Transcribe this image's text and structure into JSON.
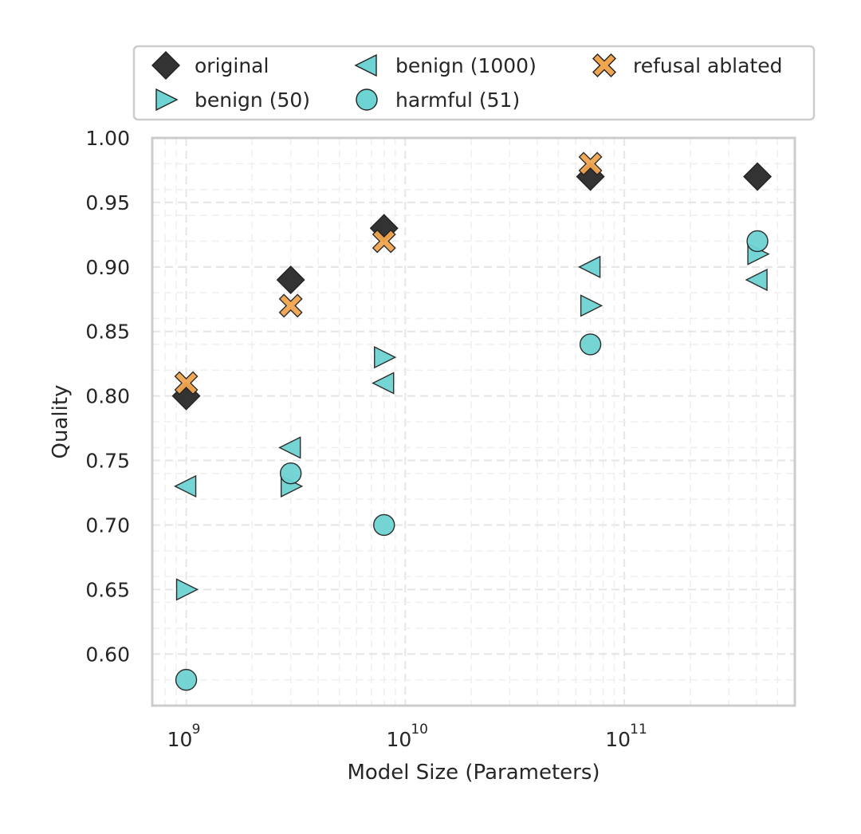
{
  "chart_data": {
    "type": "scatter",
    "xlabel": "Model Size (Parameters)",
    "ylabel": "Quality",
    "x_scale": "log",
    "xlim": [
      700000000,
      600000000000
    ],
    "ylim": [
      0.56,
      1.0
    ],
    "x_ticks": [
      {
        "value": 1000000000,
        "label": "10",
        "exp": "9"
      },
      {
        "value": 10000000000,
        "label": "10",
        "exp": "10"
      },
      {
        "value": 100000000000,
        "label": "10",
        "exp": "11"
      }
    ],
    "y_ticks": [
      {
        "value": 0.6,
        "label": "0.60"
      },
      {
        "value": 0.65,
        "label": "0.65"
      },
      {
        "value": 0.7,
        "label": "0.70"
      },
      {
        "value": 0.75,
        "label": "0.75"
      },
      {
        "value": 0.8,
        "label": "0.80"
      },
      {
        "value": 0.85,
        "label": "0.85"
      },
      {
        "value": 0.9,
        "label": "0.90"
      },
      {
        "value": 0.95,
        "label": "0.95"
      },
      {
        "value": 1.0,
        "label": "1.00"
      }
    ],
    "grid": true,
    "legend_position": "top",
    "series": [
      {
        "name": "original",
        "marker": "diamond",
        "color": "#333333",
        "points": [
          {
            "x": 1000000000,
            "y": 0.8
          },
          {
            "x": 3000000000,
            "y": 0.89
          },
          {
            "x": 8000000000,
            "y": 0.93
          },
          {
            "x": 70000000000,
            "y": 0.97
          },
          {
            "x": 405000000000,
            "y": 0.97
          }
        ]
      },
      {
        "name": "benign (50)",
        "marker": "triangle-right",
        "color": "#6ed3d3",
        "points": [
          {
            "x": 1000000000,
            "y": 0.65
          },
          {
            "x": 3000000000,
            "y": 0.73
          },
          {
            "x": 8000000000,
            "y": 0.83
          },
          {
            "x": 70000000000,
            "y": 0.87
          },
          {
            "x": 405000000000,
            "y": 0.91
          }
        ]
      },
      {
        "name": "benign (1000)",
        "marker": "triangle-left",
        "color": "#6ed3d3",
        "points": [
          {
            "x": 1000000000,
            "y": 0.73
          },
          {
            "x": 3000000000,
            "y": 0.76
          },
          {
            "x": 8000000000,
            "y": 0.81
          },
          {
            "x": 70000000000,
            "y": 0.9
          },
          {
            "x": 405000000000,
            "y": 0.89
          }
        ]
      },
      {
        "name": "harmful (51)",
        "marker": "circle",
        "color": "#6ed3d3",
        "points": [
          {
            "x": 1000000000,
            "y": 0.58
          },
          {
            "x": 3000000000,
            "y": 0.74
          },
          {
            "x": 8000000000,
            "y": 0.7
          },
          {
            "x": 70000000000,
            "y": 0.84
          },
          {
            "x": 405000000000,
            "y": 0.92
          }
        ]
      },
      {
        "name": "refusal ablated",
        "marker": "x-filled",
        "color": "#f2a54f",
        "points": [
          {
            "x": 1000000000,
            "y": 0.81
          },
          {
            "x": 3000000000,
            "y": 0.87
          },
          {
            "x": 8000000000,
            "y": 0.92
          },
          {
            "x": 70000000000,
            "y": 0.98
          }
        ]
      }
    ],
    "legend_order": [
      "original",
      "benign (50)",
      "benign (1000)",
      "harmful (51)",
      "refusal ablated"
    ]
  }
}
